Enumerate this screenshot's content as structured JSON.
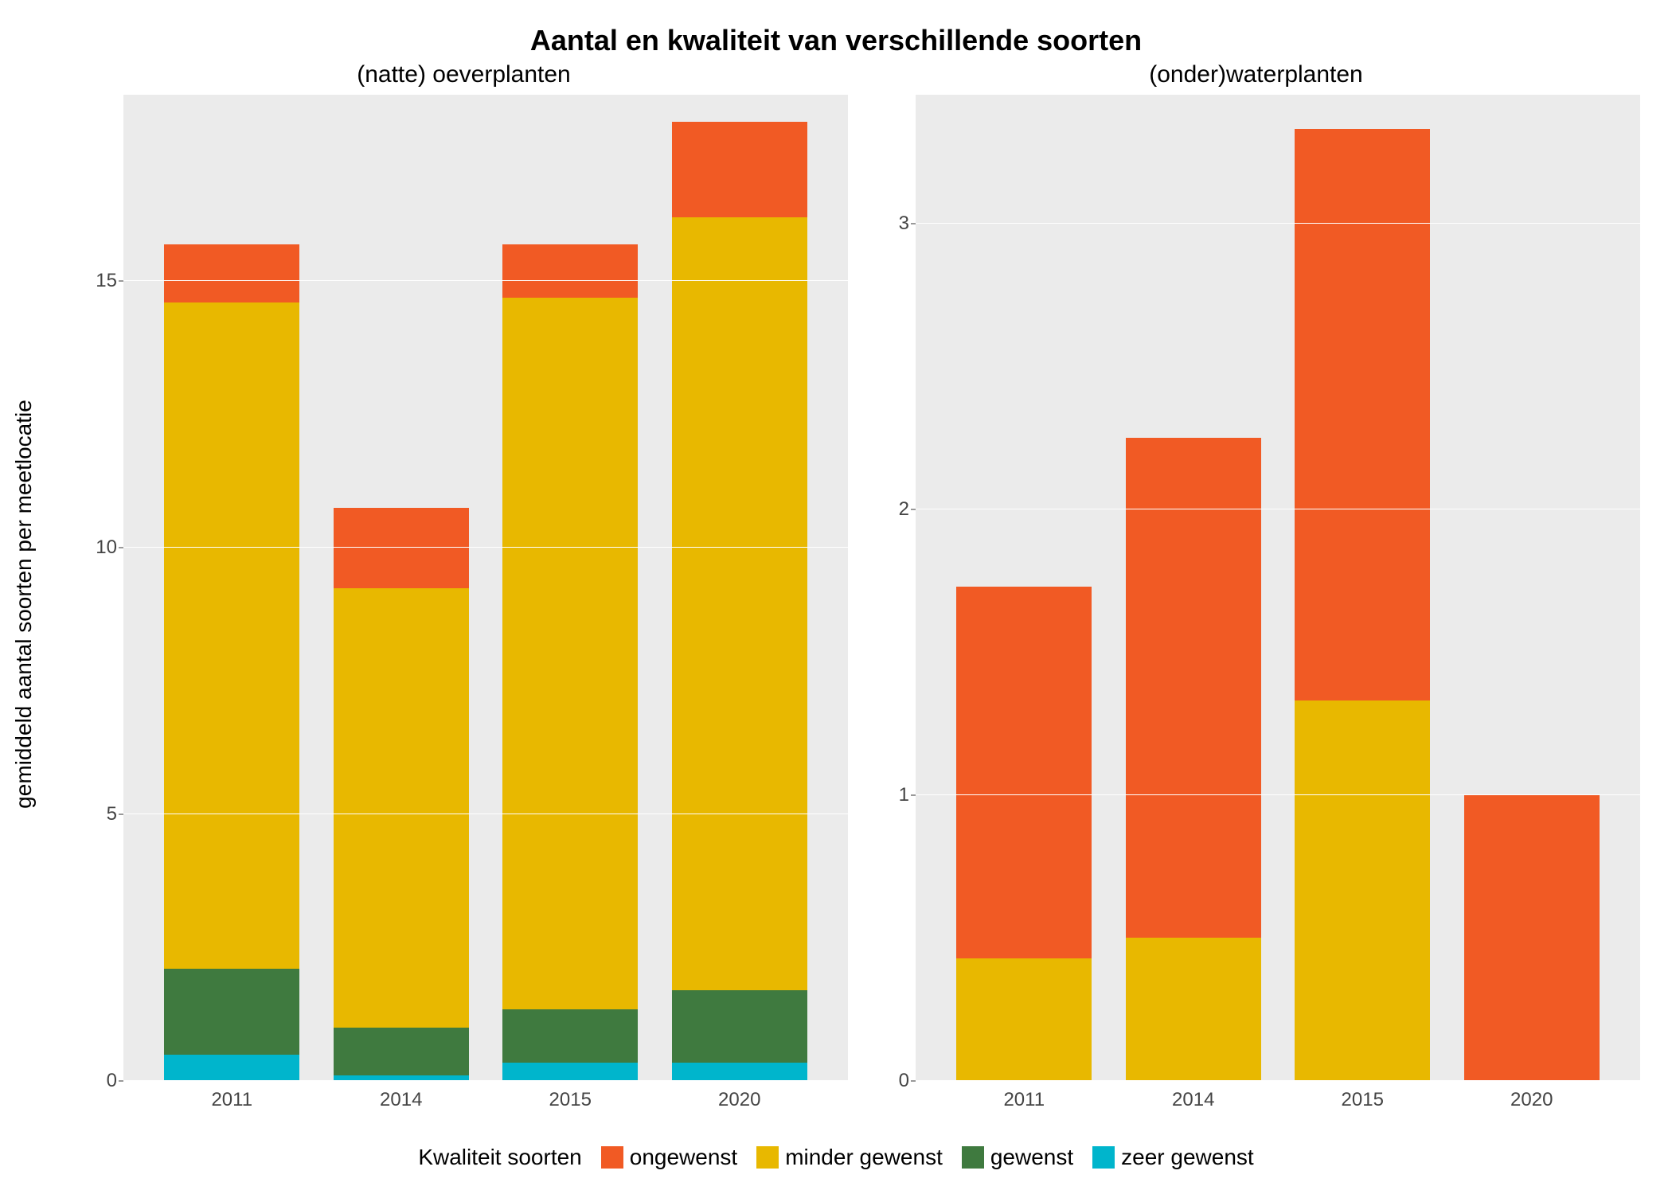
{
  "title": "Aantal en kwaliteit van verschillende soorten",
  "y_axis_label": "gemiddeld aantal soorten per meetlocatie",
  "background_color": "#ffffff",
  "panel_background": "#ebebeb",
  "grid_color": "#ffffff",
  "title_fontsize": 36,
  "panel_title_fontsize": 30,
  "axis_label_fontsize": 28,
  "tick_fontsize": 24,
  "legend_fontsize": 28,
  "colors": {
    "ongewenst": "#f15a24",
    "minder_gewenst": "#e8b800",
    "gewenst": "#3f7a3f",
    "zeer_gewenst": "#00b5cc"
  },
  "legend": {
    "title": "Kwaliteit soorten",
    "items": [
      {
        "key": "ongewenst",
        "label": "ongewenst"
      },
      {
        "key": "minder_gewenst",
        "label": "minder gewenst"
      },
      {
        "key": "gewenst",
        "label": "gewenst"
      },
      {
        "key": "zeer_gewenst",
        "label": "zeer gewenst"
      }
    ]
  },
  "panels": [
    {
      "title": "(natte) oeverplanten",
      "type": "stacked_bar",
      "categories": [
        "2011",
        "2014",
        "2015",
        "2020"
      ],
      "ylim": [
        0,
        18.5
      ],
      "yticks": [
        0,
        5,
        10,
        15
      ],
      "stack_order": [
        "zeer_gewenst",
        "gewenst",
        "minder_gewenst",
        "ongewenst"
      ],
      "data": [
        {
          "zeer_gewenst": 0.5,
          "gewenst": 1.6,
          "minder_gewenst": 12.5,
          "ongewenst": 1.1
        },
        {
          "zeer_gewenst": 0.1,
          "gewenst": 0.9,
          "minder_gewenst": 8.25,
          "ongewenst": 1.5
        },
        {
          "zeer_gewenst": 0.35,
          "gewenst": 1.0,
          "minder_gewenst": 13.35,
          "ongewenst": 1.0
        },
        {
          "zeer_gewenst": 0.35,
          "gewenst": 1.35,
          "minder_gewenst": 14.5,
          "ongewenst": 1.8
        }
      ]
    },
    {
      "title": "(onder)waterplanten",
      "type": "stacked_bar",
      "categories": [
        "2011",
        "2014",
        "2015",
        "2020"
      ],
      "ylim": [
        0,
        3.45
      ],
      "yticks": [
        0,
        1,
        2,
        3
      ],
      "stack_order": [
        "zeer_gewenst",
        "gewenst",
        "minder_gewenst",
        "ongewenst"
      ],
      "data": [
        {
          "zeer_gewenst": 0,
          "gewenst": 0,
          "minder_gewenst": 0.43,
          "ongewenst": 1.3
        },
        {
          "zeer_gewenst": 0,
          "gewenst": 0,
          "minder_gewenst": 0.5,
          "ongewenst": 1.75
        },
        {
          "zeer_gewenst": 0,
          "gewenst": 0,
          "minder_gewenst": 1.33,
          "ongewenst": 2.0
        },
        {
          "zeer_gewenst": 0,
          "gewenst": 0,
          "minder_gewenst": 0.0,
          "ongewenst": 1.0
        }
      ]
    }
  ]
}
